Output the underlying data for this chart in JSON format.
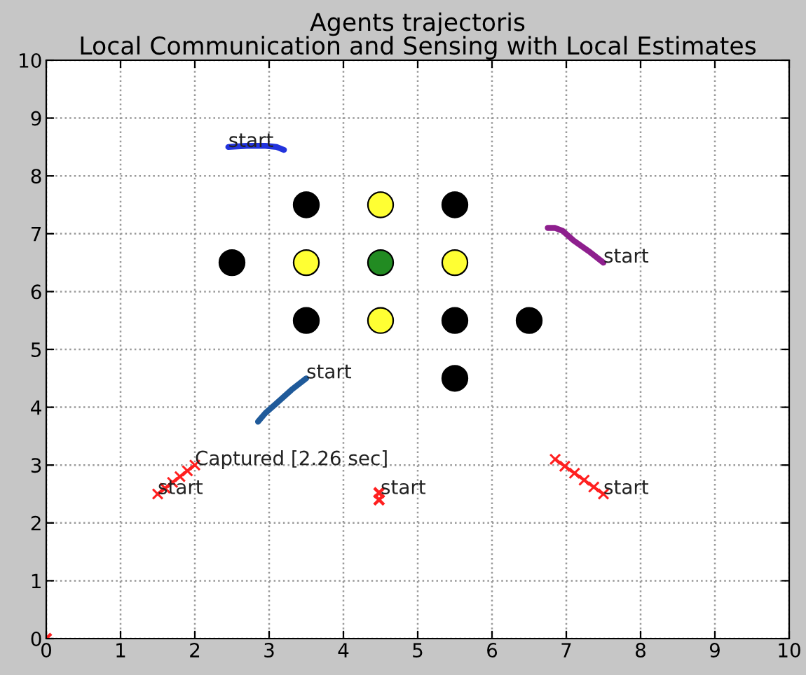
{
  "chart_data": {
    "type": "line",
    "title": "Agents trajectoris",
    "subtitle": "Local Communication and Sensing with Local Estimates",
    "xlim": [
      0,
      10
    ],
    "ylim": [
      0,
      10
    ],
    "xticks": [
      0,
      1,
      2,
      3,
      4,
      5,
      6,
      7,
      8,
      9,
      10
    ],
    "yticks": [
      0,
      1,
      2,
      3,
      4,
      5,
      6,
      7,
      8,
      9,
      10
    ],
    "grid": true,
    "series": [
      {
        "color": "#2233dd",
        "marker": "none",
        "x": [
          2.45,
          2.7,
          2.95,
          3.1,
          3.2
        ],
        "values": [
          8.5,
          8.52,
          8.52,
          8.5,
          8.45
        ]
      },
      {
        "color": "#8e1f8e",
        "marker": "none",
        "x": [
          7.5,
          7.3,
          7.1,
          6.95,
          6.85,
          6.75
        ],
        "values": [
          6.5,
          6.7,
          6.88,
          7.05,
          7.1,
          7.1
        ]
      },
      {
        "color": "#1f5a9a",
        "marker": "none",
        "x": [
          3.5,
          3.3,
          3.1,
          2.95,
          2.85
        ],
        "values": [
          4.5,
          4.3,
          4.07,
          3.9,
          3.75
        ]
      },
      {
        "color": "#ff2020",
        "marker": "cross",
        "x": [
          1.5,
          1.6,
          1.7,
          1.8,
          1.9,
          2.0
        ],
        "values": [
          2.5,
          2.6,
          2.7,
          2.8,
          2.9,
          3.0
        ]
      },
      {
        "type": "scatter",
        "color": "#ff2020",
        "marker": "cross",
        "x": [
          4.48,
          4.48
        ],
        "values": [
          2.52,
          2.4
        ]
      },
      {
        "color": "#ff2020",
        "marker": "cross",
        "x": [
          7.5,
          7.37,
          7.24,
          7.11,
          6.98,
          6.85
        ],
        "values": [
          2.5,
          2.62,
          2.74,
          2.86,
          2.98,
          3.1
        ]
      },
      {
        "type": "scatter",
        "color": "#ff2020",
        "marker": "cross",
        "x": [
          0
        ],
        "values": [
          0
        ]
      },
      {
        "type": "scatter",
        "color": "#000000",
        "marker": "circle",
        "x": [
          3.5,
          5.5,
          2.5,
          3.5,
          5.5,
          6.5,
          5.5
        ],
        "values": [
          7.5,
          7.5,
          6.5,
          5.5,
          5.5,
          5.5,
          4.5
        ]
      },
      {
        "type": "scatter",
        "color": "#ffff33",
        "marker": "circle",
        "x": [
          4.5,
          3.5,
          5.5,
          4.5
        ],
        "values": [
          7.5,
          6.5,
          6.5,
          5.5
        ]
      },
      {
        "type": "scatter",
        "color": "#228b22",
        "marker": "circle",
        "x": [
          4.5
        ],
        "values": [
          6.5
        ]
      }
    ],
    "annotations": [
      {
        "text": "start",
        "x": 2.45,
        "y": 8.5
      },
      {
        "text": "start",
        "x": 7.5,
        "y": 6.5
      },
      {
        "text": "start",
        "x": 3.5,
        "y": 4.5
      },
      {
        "text": "start",
        "x": 1.5,
        "y": 2.5
      },
      {
        "text": "start",
        "x": 4.5,
        "y": 2.5
      },
      {
        "text": "start",
        "x": 7.5,
        "y": 2.5
      },
      {
        "text": "Captured [2.26 sec]",
        "x": 2.0,
        "y": 3.0
      }
    ]
  }
}
